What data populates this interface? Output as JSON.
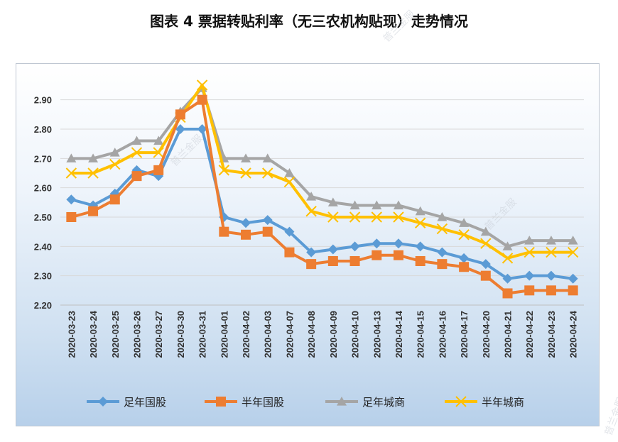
{
  "title": "图表 4  票据转贴利率（无三农机构贴现）走势情况",
  "watermark": "普兰金服",
  "colors": {
    "zunian_guogu": "#5b9bd5",
    "bannian_guogu": "#ed7d31",
    "zunian_chengshang": "#a5a5a5",
    "bannian_chengshang": "#ffc000",
    "grid": "#d9d9d9",
    "axis_text": "#333333"
  },
  "chart_data": {
    "type": "line",
    "categories": [
      "2020-03-23",
      "2020-03-24",
      "2020-03-25",
      "2020-03-26",
      "2020-03-27",
      "2020-03-30",
      "2020-03-31",
      "2020-04-01",
      "2020-04-02",
      "2020-04-03",
      "2020-04-07",
      "2020-04-08",
      "2020-04-09",
      "2020-04-10",
      "2020-04-13",
      "2020-04-14",
      "2020-04-15",
      "2020-04-16",
      "2020-04-17",
      "2020-04-20",
      "2020-04-21",
      "2020-04-22",
      "2020-04-23",
      "2020-04-24"
    ],
    "ylim": [
      2.2,
      2.95
    ],
    "yticks": [
      "2.20",
      "2.30",
      "2.40",
      "2.50",
      "2.60",
      "2.70",
      "2.80",
      "2.90"
    ],
    "grid": true,
    "legend_position": "bottom",
    "series": [
      {
        "name": "足年国股",
        "marker": "diamond",
        "color": "#5b9bd5",
        "values": [
          2.56,
          2.54,
          2.58,
          2.66,
          2.64,
          2.8,
          2.8,
          2.5,
          2.48,
          2.49,
          2.45,
          2.38,
          2.39,
          2.4,
          2.41,
          2.41,
          2.4,
          2.38,
          2.36,
          2.34,
          2.29,
          2.3,
          2.3,
          2.29
        ]
      },
      {
        "name": "半年国股",
        "marker": "square",
        "color": "#ed7d31",
        "values": [
          2.5,
          2.52,
          2.56,
          2.64,
          2.66,
          2.85,
          2.9,
          2.45,
          2.44,
          2.45,
          2.38,
          2.34,
          2.35,
          2.35,
          2.37,
          2.37,
          2.35,
          2.34,
          2.33,
          2.3,
          2.24,
          2.25,
          2.25,
          2.25
        ]
      },
      {
        "name": "足年城商",
        "marker": "triangle",
        "color": "#a5a5a5",
        "values": [
          2.7,
          2.7,
          2.72,
          2.76,
          2.76,
          2.86,
          2.94,
          2.7,
          2.7,
          2.7,
          2.65,
          2.57,
          2.55,
          2.54,
          2.54,
          2.54,
          2.52,
          2.5,
          2.48,
          2.45,
          2.4,
          2.42,
          2.42,
          2.42
        ]
      },
      {
        "name": "半年城商",
        "marker": "x",
        "color": "#ffc000",
        "values": [
          2.65,
          2.65,
          2.68,
          2.72,
          2.72,
          2.84,
          2.95,
          2.66,
          2.65,
          2.65,
          2.62,
          2.52,
          2.5,
          2.5,
          2.5,
          2.5,
          2.48,
          2.46,
          2.44,
          2.41,
          2.36,
          2.38,
          2.38,
          2.38
        ]
      }
    ]
  }
}
